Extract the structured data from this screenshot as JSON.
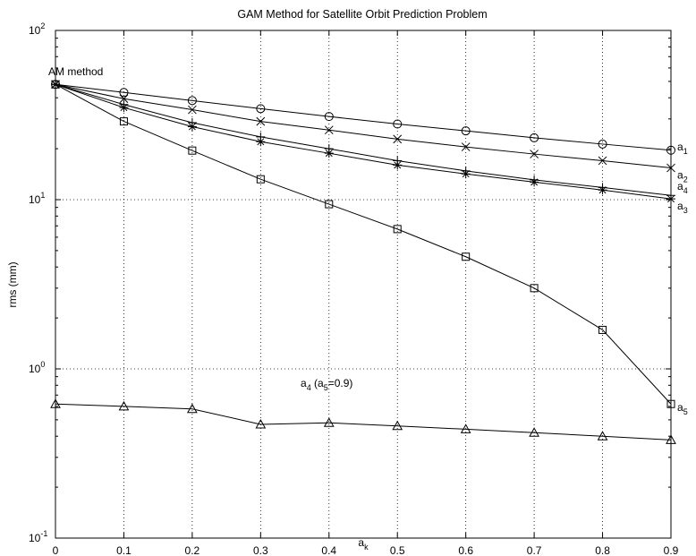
{
  "chart_data": {
    "type": "line",
    "title": "GAM Method for Satellite Orbit Prediction Problem",
    "xlabel": {
      "base": "a",
      "sub": "k"
    },
    "ylabel": "rms (mm)",
    "xlim": [
      0,
      0.9
    ],
    "ylim": [
      0.1,
      100
    ],
    "yscale": "log",
    "grid": true,
    "x_ticks": [
      "0",
      "0.1",
      "0.2",
      "0.3",
      "0.4",
      "0.5",
      "0.6",
      "0.7",
      "0.8",
      "0.9"
    ],
    "y_ticks": [
      {
        "base": "10",
        "exp": "-1"
      },
      {
        "base": "10",
        "exp": "0"
      },
      {
        "base": "10",
        "exp": "1"
      },
      {
        "base": "10",
        "exp": "2"
      }
    ],
    "x": [
      0,
      0.1,
      0.2,
      0.3,
      0.4,
      0.5,
      0.6,
      0.7,
      0.8,
      0.9
    ],
    "series": [
      {
        "label_base": "a",
        "label_sub": "1",
        "marker": "circle",
        "values": [
          48,
          43,
          38.5,
          34.5,
          31,
          28,
          25.5,
          23.2,
          21.3,
          19.6
        ]
      },
      {
        "label_base": "a",
        "label_sub": "2",
        "marker": "x",
        "values": [
          48,
          39.5,
          34,
          29,
          25.8,
          22.8,
          20.5,
          18.6,
          17,
          15.4
        ]
      },
      {
        "label_base": "a",
        "label_sub": "4",
        "marker": "plus",
        "values": [
          48,
          36.5,
          28.5,
          23.5,
          20,
          17,
          14.8,
          13.1,
          11.8,
          10.6
        ]
      },
      {
        "label_base": "a",
        "label_sub": "3",
        "marker": "star",
        "values": [
          48,
          35,
          27,
          22,
          18.8,
          16,
          14.2,
          12.7,
          11.4,
          10.1
        ]
      },
      {
        "label_base": "a",
        "label_sub": "5",
        "marker": "square",
        "values": [
          48,
          29,
          19.5,
          13.2,
          9.4,
          6.7,
          4.6,
          3.0,
          1.7,
          0.62
        ]
      },
      {
        "label_base": "",
        "label_sub": "",
        "marker": "triangle",
        "values": [
          0.62,
          0.6,
          0.58,
          0.47,
          0.48,
          0.46,
          0.44,
          0.42,
          0.4,
          0.38
        ]
      }
    ],
    "annotations": [
      {
        "text": "AM method",
        "x": 0,
        "y": 48
      },
      {
        "base": "a",
        "sub": "4",
        "rest_prefix": " (a",
        "rest_sub": "5",
        "rest_suffix": "=0.9)",
        "x": 0.39,
        "y": 0.72
      }
    ]
  }
}
